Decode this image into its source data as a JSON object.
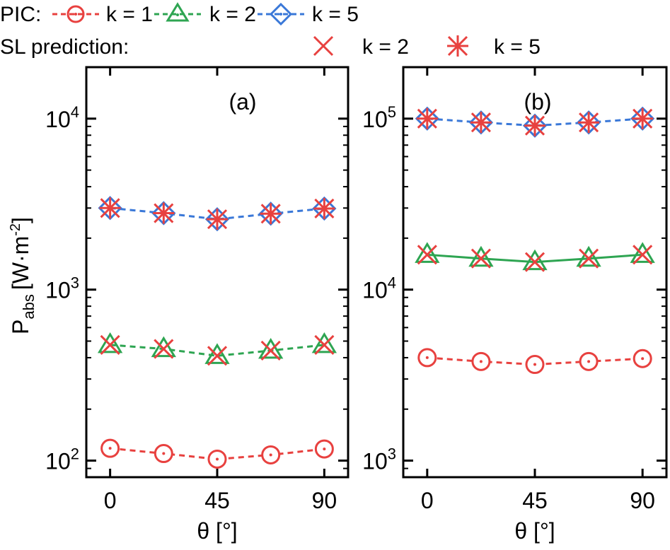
{
  "legend": {
    "pic_label": "PIC:",
    "sl_label": "SL prediction:",
    "entries": [
      {
        "label": "k = 1"
      },
      {
        "label": "k = 2"
      },
      {
        "label": "k = 5"
      },
      {
        "label": "k = 2"
      },
      {
        "label": "k = 5"
      }
    ]
  },
  "colors": {
    "k1": "#e8413f",
    "k2": "#2ea552",
    "k5": "#3a78d8",
    "sl": "#e8413f"
  },
  "chart_data": [
    {
      "type": "line",
      "panel_label": "(a)",
      "xlabel": "θ [°]",
      "ylabel_main": "P",
      "ylabel_sub": "abs",
      "ylabel_unit": "[W·m",
      "ylabel_exp": "-2",
      "ylabel_close": "]",
      "yscale": "log",
      "xlim": [
        -10,
        100
      ],
      "ylim": [
        80,
        20000
      ],
      "xticks": [
        0,
        45,
        90
      ],
      "xtick_labels": [
        "0",
        "45",
        "90"
      ],
      "yticks": [
        100,
        1000,
        10000
      ],
      "ytick_base": "10",
      "ytick_exps": [
        "2",
        "3",
        "4"
      ],
      "x": [
        0,
        22.5,
        45,
        67.5,
        90
      ],
      "series": [
        {
          "key": "k1",
          "values": [
            118,
            110,
            102,
            108,
            117
          ]
        },
        {
          "key": "k2",
          "values": [
            475,
            450,
            410,
            440,
            475
          ]
        },
        {
          "key": "k5",
          "values": [
            3000,
            2800,
            2580,
            2780,
            2980
          ]
        }
      ],
      "sl": [
        {
          "key": "k2",
          "values": [
            475,
            450,
            410,
            440,
            475
          ]
        },
        {
          "key": "k5",
          "values": [
            3000,
            2800,
            2580,
            2780,
            2980
          ]
        }
      ]
    },
    {
      "type": "line",
      "panel_label": "(b)",
      "xlabel": "θ [°]",
      "yscale": "log",
      "xlim": [
        -10,
        100
      ],
      "ylim": [
        800,
        200000
      ],
      "xticks": [
        0,
        45,
        90
      ],
      "xtick_labels": [
        "0",
        "45",
        "90"
      ],
      "yticks": [
        1000,
        10000,
        100000
      ],
      "ytick_base": "10",
      "ytick_exps": [
        "3",
        "4",
        "5"
      ],
      "x": [
        0,
        22.5,
        45,
        67.5,
        90
      ],
      "series": [
        {
          "key": "k1",
          "values": [
            4000,
            3800,
            3650,
            3800,
            3950
          ]
        },
        {
          "key": "k2",
          "values": [
            16000,
            15200,
            14500,
            15200,
            16000
          ]
        },
        {
          "key": "k5",
          "values": [
            100000,
            95000,
            91000,
            95000,
            100000
          ]
        }
      ],
      "sl": [
        {
          "key": "k2",
          "values": [
            16000,
            15200,
            14500,
            15200,
            16000
          ]
        },
        {
          "key": "k5",
          "values": [
            100000,
            95000,
            91000,
            95000,
            100000
          ]
        }
      ]
    }
  ]
}
